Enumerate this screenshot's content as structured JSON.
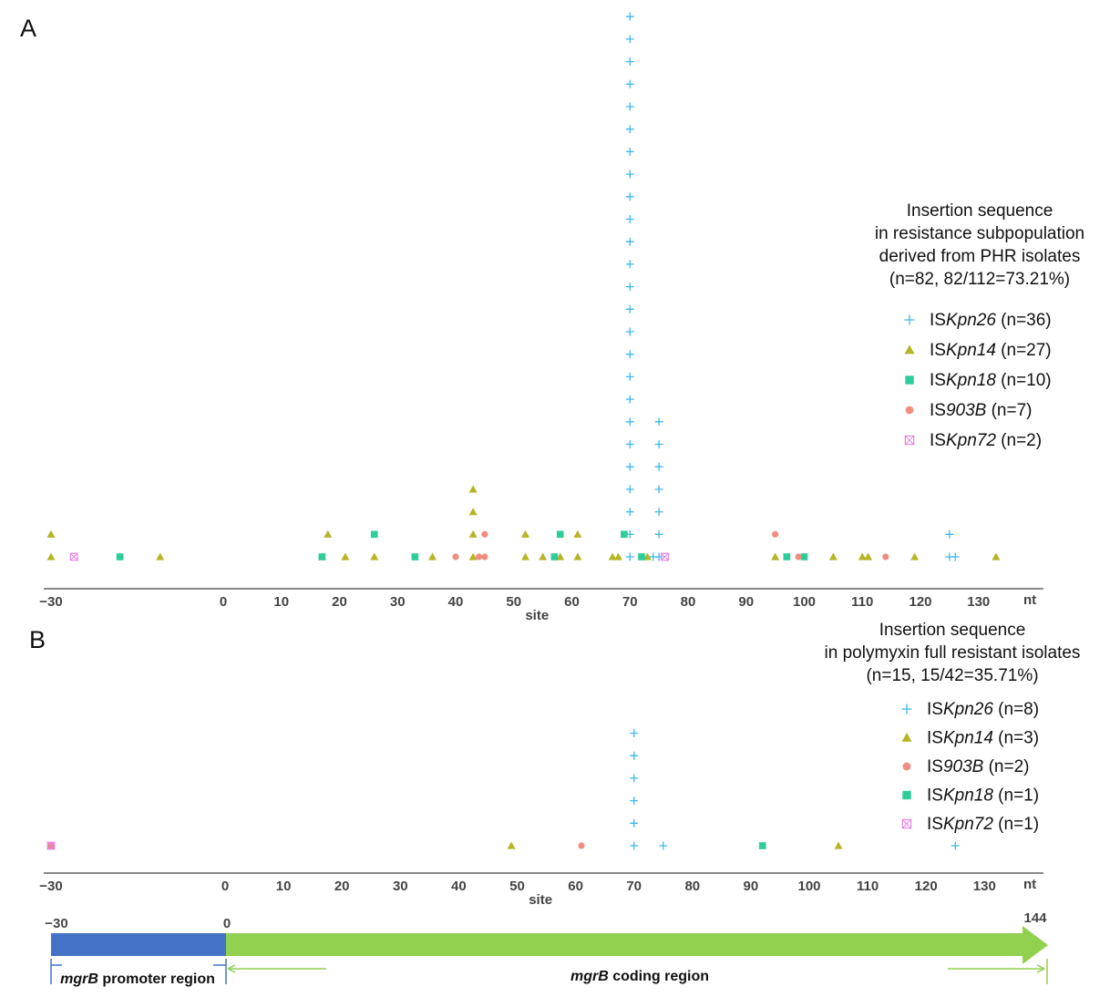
{
  "colors": {
    "ISKpn26": "#3db8ea",
    "ISKpn14": "#b5b526",
    "ISKpn18": "#2ecc9a",
    "IS903B": "#f08d80",
    "ISKpn72": "#e67ae6",
    "promoter": "#4472c4",
    "coding": "#92d050",
    "axis": "#444444"
  },
  "chart_data": [
    {
      "panel": "A",
      "type": "scatter",
      "xlabel": "site",
      "xunit": "nt",
      "xlim": [
        -30,
        140
      ],
      "xticks": [
        -30,
        0,
        10,
        20,
        30,
        40,
        50,
        60,
        70,
        80,
        90,
        100,
        110,
        120,
        130
      ],
      "stacking": "points at the same site are stacked vertically, one row per isolate",
      "legend": {
        "title": [
          "Insertion sequence",
          "in resistance subpopulation",
          "derived from PHR isolates",
          "(n=82, 82/112=73.21%)"
        ],
        "position": "right",
        "entries": [
          {
            "series": "ISKpn26",
            "prefix": "IS",
            "italic": "Kpn26",
            "suffix": " (n=36)"
          },
          {
            "series": "ISKpn14",
            "prefix": "IS",
            "italic": "Kpn14",
            "suffix": " (n=27)"
          },
          {
            "series": "ISKpn18",
            "prefix": "IS",
            "italic": "Kpn18",
            "suffix": " (n=10)"
          },
          {
            "series": "IS903B",
            "prefix": "IS",
            "italic": "903B",
            "suffix": " (n=7)"
          },
          {
            "series": "ISKpn72",
            "prefix": "IS",
            "italic": "Kpn72",
            "suffix": " (n=2)"
          }
        ]
      },
      "series": [
        {
          "name": "ISKpn26",
          "marker": "plus",
          "points": [
            [
              70,
              1
            ],
            [
              70,
              2
            ],
            [
              70,
              3
            ],
            [
              70,
              4
            ],
            [
              70,
              5
            ],
            [
              70,
              6
            ],
            [
              70,
              7
            ],
            [
              70,
              8
            ],
            [
              70,
              9
            ],
            [
              70,
              10
            ],
            [
              70,
              11
            ],
            [
              70,
              12
            ],
            [
              70,
              13
            ],
            [
              70,
              14
            ],
            [
              70,
              15
            ],
            [
              70,
              16
            ],
            [
              70,
              17
            ],
            [
              70,
              18
            ],
            [
              70,
              19
            ],
            [
              70,
              20
            ],
            [
              70,
              21
            ],
            [
              70,
              22
            ],
            [
              70,
              23
            ],
            [
              70,
              24
            ],
            [
              70,
              25
            ],
            [
              74,
              1
            ],
            [
              75,
              1
            ],
            [
              75,
              2
            ],
            [
              75,
              3
            ],
            [
              75,
              4
            ],
            [
              75,
              5
            ],
            [
              75,
              6
            ],
            [
              75,
              7
            ],
            [
              125,
              1
            ],
            [
              125,
              2
            ],
            [
              126,
              1
            ]
          ]
        },
        {
          "name": "ISKpn14",
          "marker": "triangle",
          "points": [
            [
              -30,
              1
            ],
            [
              -30,
              2
            ],
            [
              -11,
              1
            ],
            [
              17,
              1
            ],
            [
              18,
              2
            ],
            [
              21,
              1
            ],
            [
              26,
              1
            ],
            [
              36,
              1
            ],
            [
              43,
              1
            ],
            [
              43,
              2
            ],
            [
              43,
              3
            ],
            [
              43,
              4
            ],
            [
              52,
              1
            ],
            [
              52,
              2
            ],
            [
              55,
              1
            ],
            [
              58,
              1
            ],
            [
              61,
              1
            ],
            [
              61,
              2
            ],
            [
              67,
              1
            ],
            [
              73,
              1
            ],
            [
              95,
              1
            ],
            [
              105,
              1
            ],
            [
              110,
              1
            ],
            [
              111,
              1
            ],
            [
              119,
              1
            ],
            [
              133,
              1
            ],
            [
              68,
              1
            ]
          ]
        },
        {
          "name": "ISKpn18",
          "marker": "square",
          "points": [
            [
              -18,
              1
            ],
            [
              17,
              1
            ],
            [
              26,
              2
            ],
            [
              33,
              1
            ],
            [
              57,
              1
            ],
            [
              58,
              2
            ],
            [
              69,
              2
            ],
            [
              72,
              1
            ],
            [
              97,
              1
            ],
            [
              100,
              1
            ]
          ]
        },
        {
          "name": "IS903B",
          "marker": "circle",
          "points": [
            [
              40,
              1
            ],
            [
              44,
              1
            ],
            [
              45,
              1
            ],
            [
              45,
              2
            ],
            [
              95,
              2
            ],
            [
              99,
              1
            ],
            [
              114,
              1
            ]
          ]
        },
        {
          "name": "ISKpn72",
          "marker": "box",
          "points": [
            [
              -26,
              1
            ],
            [
              76,
              1
            ]
          ]
        }
      ]
    },
    {
      "panel": "B",
      "type": "scatter",
      "xlabel": "site",
      "xunit": "nt",
      "xlim": [
        -30,
        140
      ],
      "xticks": [
        -30,
        0,
        10,
        20,
        30,
        40,
        50,
        60,
        70,
        80,
        90,
        100,
        110,
        120,
        130
      ],
      "stacking": "points at the same site are stacked vertically, one row per isolate",
      "legend": {
        "title": [
          "Insertion sequence",
          "in polymyxin full resistant isolates",
          "(n=15, 15/42=35.71%)"
        ],
        "position": "right",
        "entries": [
          {
            "series": "ISKpn26",
            "prefix": "IS",
            "italic": "Kpn26",
            "suffix": " (n=8)"
          },
          {
            "series": "ISKpn14",
            "prefix": "IS",
            "italic": "Kpn14",
            "suffix": " (n=3)"
          },
          {
            "series": "IS903B",
            "prefix": "IS",
            "italic": "903B",
            "suffix": " (n=2)"
          },
          {
            "series": "ISKpn18",
            "prefix": "IS",
            "italic": "Kpn18",
            "suffix": " (n=1)"
          },
          {
            "series": "ISKpn72",
            "prefix": "IS",
            "italic": "Kpn72",
            "suffix": " (n=1)"
          }
        ]
      },
      "series": [
        {
          "name": "ISKpn26",
          "marker": "plus",
          "points": [
            [
              70,
              1
            ],
            [
              70,
              2
            ],
            [
              70,
              3
            ],
            [
              70,
              4
            ],
            [
              70,
              5
            ],
            [
              70,
              6
            ],
            [
              75,
              1
            ],
            [
              125,
              1
            ]
          ]
        },
        {
          "name": "ISKpn14",
          "marker": "triangle",
          "points": [
            [
              -30,
              1
            ],
            [
              49,
              1
            ],
            [
              105,
              1
            ]
          ]
        },
        {
          "name": "IS903B",
          "marker": "circle",
          "points": [
            [
              -30,
              1
            ],
            [
              61,
              1
            ]
          ]
        },
        {
          "name": "ISKpn18",
          "marker": "square",
          "points": [
            [
              92,
              1
            ]
          ]
        },
        {
          "name": "ISKpn72",
          "marker": "box",
          "points": [
            [
              -30,
              1
            ]
          ]
        }
      ]
    }
  ],
  "panels": {
    "a_label": "A",
    "b_label": "B"
  },
  "gene_map": {
    "start": -30,
    "zero": 0,
    "end": 144,
    "start_label": "−30",
    "zero_label": "0",
    "end_label": "144",
    "promoter_label_italic": "mgrB",
    "promoter_label_rest": " promoter region",
    "coding_label_italic": "mgrB",
    "coding_label_rest": " coding region"
  }
}
